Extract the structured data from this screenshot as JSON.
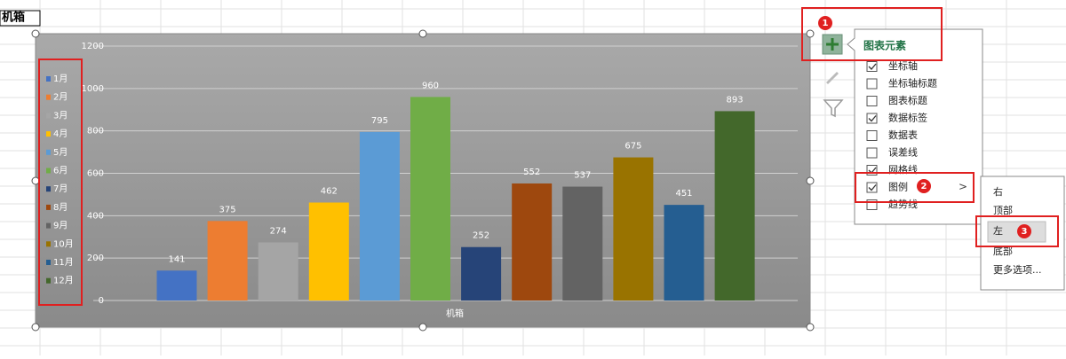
{
  "cell_label": "机箱",
  "chart_data": {
    "type": "bar",
    "categories": [
      "机箱"
    ],
    "ylim": [
      0,
      1200
    ],
    "yticks": [
      0,
      200,
      400,
      600,
      800,
      1000,
      1200
    ],
    "grid": true,
    "legend": "left",
    "data_labels": true,
    "series": [
      {
        "name": "1月",
        "color": "#4472c4",
        "values": [
          141
        ]
      },
      {
        "name": "2月",
        "color": "#ed7d31",
        "values": [
          375
        ]
      },
      {
        "name": "3月",
        "color": "#a5a5a5",
        "values": [
          274
        ]
      },
      {
        "name": "4月",
        "color": "#ffc000",
        "values": [
          462
        ]
      },
      {
        "name": "5月",
        "color": "#5b9bd5",
        "values": [
          795
        ]
      },
      {
        "name": "6月",
        "color": "#70ad47",
        "values": [
          960
        ]
      },
      {
        "name": "7月",
        "color": "#264478",
        "values": [
          252
        ]
      },
      {
        "name": "8月",
        "color": "#9e480e",
        "values": [
          552
        ]
      },
      {
        "name": "9月",
        "color": "#636363",
        "values": [
          537
        ]
      },
      {
        "name": "10月",
        "color": "#997300",
        "values": [
          675
        ]
      },
      {
        "name": "11月",
        "color": "#255e91",
        "values": [
          451
        ]
      },
      {
        "name": "12月",
        "color": "#43682b",
        "values": [
          893
        ]
      }
    ]
  },
  "panel": {
    "title": "图表元素",
    "items": [
      {
        "label": "坐标轴",
        "checked": true
      },
      {
        "label": "坐标轴标题",
        "checked": false
      },
      {
        "label": "图表标题",
        "checked": false
      },
      {
        "label": "数据标签",
        "checked": true
      },
      {
        "label": "数据表",
        "checked": false
      },
      {
        "label": "误差线",
        "checked": false
      },
      {
        "label": "网格线",
        "checked": true
      },
      {
        "label": "图例",
        "checked": true
      },
      {
        "label": "趋势线",
        "checked": false
      }
    ]
  },
  "submenu": {
    "items": [
      "右",
      "顶部",
      "左",
      "底部",
      "更多选项..."
    ]
  },
  "badges": [
    "1",
    "2",
    "3"
  ]
}
